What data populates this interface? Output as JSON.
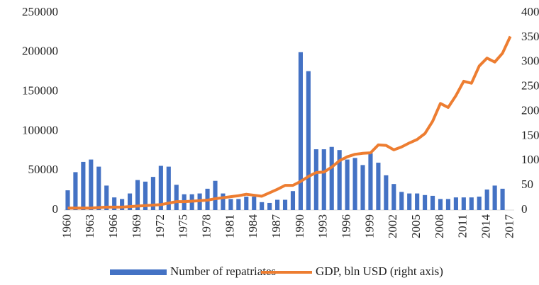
{
  "chart_data": {
    "type": "bar",
    "categories": [
      "1960",
      null,
      null,
      "1963",
      null,
      null,
      "1966",
      null,
      null,
      "1969",
      null,
      null,
      "1972",
      null,
      null,
      "1975",
      null,
      null,
      "1978",
      null,
      null,
      "1981",
      null,
      null,
      "1984",
      null,
      null,
      "1987",
      null,
      null,
      "1990",
      null,
      null,
      "1993",
      null,
      null,
      "1996",
      null,
      null,
      "1999",
      null,
      null,
      "2002",
      null,
      null,
      "2005",
      null,
      null,
      "2008",
      null,
      null,
      "2011",
      null,
      null,
      "2014",
      null,
      null,
      "2017"
    ],
    "series": [
      {
        "name": "Number of repatriates",
        "type": "bar",
        "color": "#4472c4",
        "values": [
          25000,
          48000,
          61000,
          64000,
          55000,
          31000,
          16000,
          14000,
          21000,
          38000,
          36000,
          42000,
          56000,
          55000,
          32000,
          20000,
          20000,
          21000,
          27000,
          37000,
          21000,
          14000,
          14000,
          17000,
          17000,
          10000,
          9000,
          13000,
          13000,
          24000,
          200000,
          176000,
          77000,
          77000,
          80000,
          76000,
          64000,
          66000,
          57000,
          72000,
          60000,
          44000,
          33000,
          23000,
          21000,
          21000,
          19000,
          18000,
          14000,
          14000,
          16000,
          16000,
          16000,
          17000,
          26000,
          31000,
          27000,
          0
        ]
      },
      {
        "name": "GDP, bln USD (right axis)",
        "type": "line",
        "color": "#ed7d31",
        "axis": "y2",
        "values": [
          4,
          4,
          4,
          4,
          5,
          6,
          6,
          6,
          7,
          8,
          9,
          10,
          11,
          14,
          17,
          17,
          18,
          19,
          20,
          23,
          25,
          27,
          29,
          32,
          30,
          28,
          35,
          42,
          50,
          50,
          58,
          68,
          76,
          77,
          87,
          100,
          108,
          113,
          115,
          116,
          132,
          131,
          122,
          128,
          136,
          143,
          155,
          180,
          216,
          208,
          232,
          261,
          257,
          292,
          308,
          300,
          318,
          352
        ]
      }
    ],
    "ylim": [
      0,
      250000
    ],
    "yticks": [
      0,
      50000,
      100000,
      150000,
      200000,
      250000
    ],
    "y2lim": [
      0,
      400
    ],
    "y2ticks": [
      0,
      50,
      100,
      150,
      200,
      250,
      300,
      350,
      400
    ],
    "grid": false,
    "legend": "bottom"
  }
}
